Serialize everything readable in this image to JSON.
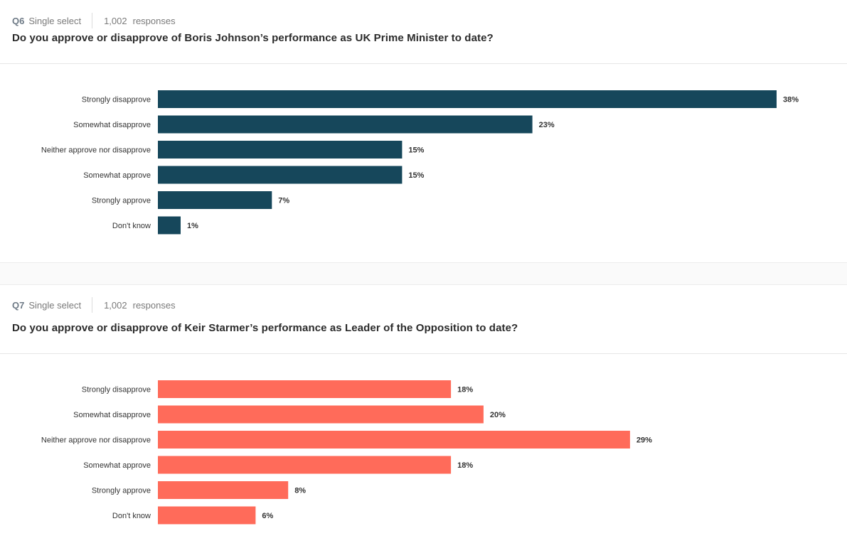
{
  "questions": [
    {
      "number": "Q6",
      "type": "Single select",
      "responses_count": "1,002",
      "responses_label": "responses",
      "title": "Do you approve or disapprove of Boris Johnson’s performance as UK Prime Minister to date?",
      "bar_color": "#16475b"
    },
    {
      "number": "Q7",
      "type": "Single select",
      "responses_count": "1,002",
      "responses_label": "responses",
      "title": "Do you approve or disapprove of Keir Starmer’s performance as Leader of the Opposition to date?",
      "bar_color": "#ff6b5a"
    }
  ],
  "chart_data": [
    {
      "type": "bar",
      "orientation": "horizontal",
      "title": "Do you approve or disapprove of Boris Johnson’s performance as UK Prime Minister to date?",
      "categories": [
        "Strongly disapprove",
        "Somewhat disapprove",
        "Neither approve nor disapprove",
        "Somewhat approve",
        "Strongly approve",
        "Don't know"
      ],
      "values": [
        38,
        23,
        15,
        15,
        7,
        1
      ],
      "labels": [
        "38%",
        "23%",
        "15%",
        "15%",
        "7%",
        "1%"
      ],
      "unit": "%"
    },
    {
      "type": "bar",
      "orientation": "horizontal",
      "title": "Do you approve or disapprove of Keir Starmer’s performance as Leader of the Opposition to date?",
      "categories": [
        "Strongly disapprove",
        "Somewhat disapprove",
        "Neither approve nor disapprove",
        "Somewhat approve",
        "Strongly approve",
        "Don't know"
      ],
      "values": [
        18,
        20,
        29,
        18,
        8,
        6
      ],
      "labels": [
        "18%",
        "20%",
        "29%",
        "18%",
        "8%",
        "6%"
      ],
      "unit": "%"
    }
  ]
}
